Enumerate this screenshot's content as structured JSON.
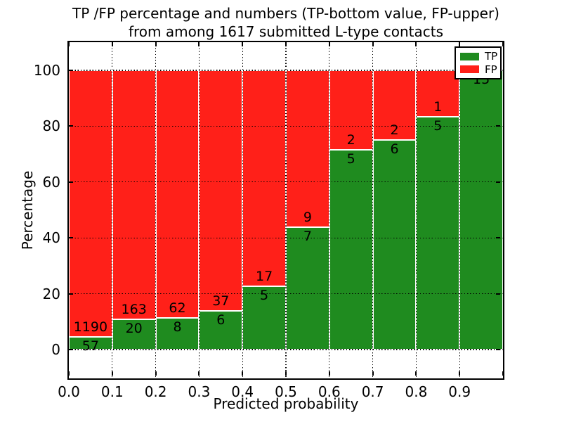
{
  "chart_data": {
    "type": "bar",
    "stacked": true,
    "title": "TP /FP percentage and numbers (TP-bottom value, FP-upper)\nfrom among 1617 submitted L-type contacts",
    "title_lines": [
      "TP /FP percentage and numbers (TP-bottom value, FP-upper)",
      "from among 1617 submitted L-type contacts"
    ],
    "total_contacts": 1617,
    "xlabel": "Predicted probability",
    "ylabel": "Percentage",
    "categories": [
      "0.0-0.1",
      "0.1-0.2",
      "0.2-0.3",
      "0.3-0.4",
      "0.4-0.5",
      "0.5-0.6",
      "0.6-0.7",
      "0.7-0.8",
      "0.8-0.9",
      "0.9-1.0"
    ],
    "series": [
      {
        "name": "TP",
        "color": "#1f8b1f",
        "values": [
          57,
          20,
          8,
          6,
          5,
          7,
          5,
          6,
          5,
          15
        ]
      },
      {
        "name": "FP",
        "color": "#ff2019",
        "values": [
          1190,
          163,
          62,
          37,
          17,
          9,
          2,
          2,
          1,
          0
        ]
      }
    ],
    "tp_percent": [
      4.57,
      10.93,
      11.43,
      13.95,
      22.73,
      43.75,
      71.43,
      75.0,
      83.33,
      100.0
    ],
    "bars_normalized_to": 100,
    "x_tick_labels": [
      "0.0",
      "0.1",
      "0.2",
      "0.3",
      "0.4",
      "0.5",
      "0.6",
      "0.7",
      "0.8",
      "0.9"
    ],
    "y_tick_labels": [
      "0",
      "20",
      "40",
      "60",
      "80",
      "100"
    ],
    "y_ticks": [
      0,
      20,
      40,
      60,
      80,
      100
    ],
    "xlim": [
      0.0,
      1.0
    ],
    "ylim": [
      -10,
      110
    ],
    "grid": true,
    "grid_style": "dotted",
    "legend": {
      "position": "upper right",
      "entries": [
        {
          "label": "TP",
          "color": "#1f8b1f"
        },
        {
          "label": "FP",
          "color": "#ff2019"
        }
      ]
    }
  }
}
